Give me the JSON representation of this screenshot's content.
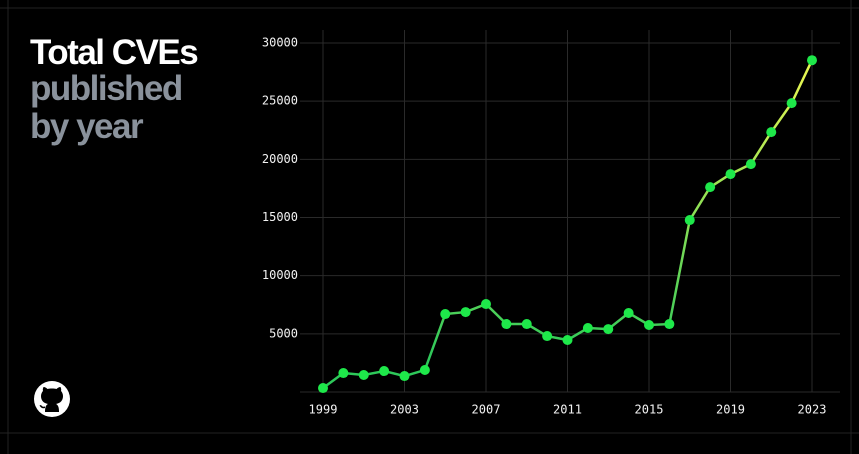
{
  "chart_data": {
    "type": "line",
    "title": "Total CVEs",
    "subtitle": "published by year",
    "x": [
      1999,
      2000,
      2001,
      2002,
      2003,
      2004,
      2005,
      2006,
      2007,
      2008,
      2009,
      2010,
      2011,
      2012,
      2013,
      2014,
      2015,
      2016,
      2017,
      2018,
      2019,
      2020,
      2021,
      2022,
      2023
    ],
    "values": [
      340,
      1630,
      1460,
      1800,
      1370,
      1890,
      6700,
      6870,
      7560,
      5840,
      5840,
      4810,
      4470,
      5500,
      5410,
      6790,
      5760,
      5840,
      14780,
      17610,
      18730,
      19590,
      22340,
      24830,
      28520
    ],
    "color": "#1ee84a",
    "line_colors": [
      "#2ec85a",
      "#e3f552"
    ],
    "xlim": [
      1999,
      2023
    ],
    "xticks": [
      1999,
      2003,
      2007,
      2011,
      2015,
      2019,
      2023
    ],
    "ylim": [
      0,
      30000
    ],
    "yticks": [
      5000,
      10000,
      15000,
      20000,
      25000,
      30000
    ],
    "grid": true
  }
}
